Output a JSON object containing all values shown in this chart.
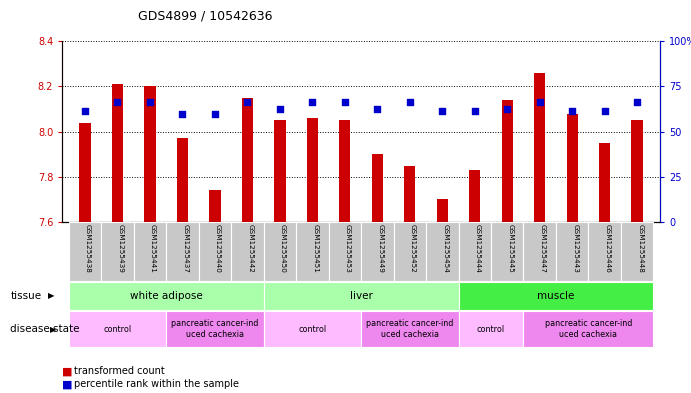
{
  "title": "GDS4899 / 10542636",
  "samples": [
    "GSM1255438",
    "GSM1255439",
    "GSM1255441",
    "GSM1255437",
    "GSM1255440",
    "GSM1255442",
    "GSM1255450",
    "GSM1255451",
    "GSM1255453",
    "GSM1255449",
    "GSM1255452",
    "GSM1255454",
    "GSM1255444",
    "GSM1255445",
    "GSM1255447",
    "GSM1255443",
    "GSM1255446",
    "GSM1255448"
  ],
  "transformed_count": [
    8.04,
    8.21,
    8.2,
    7.97,
    7.74,
    8.15,
    8.05,
    8.06,
    8.05,
    7.9,
    7.85,
    7.7,
    7.83,
    8.14,
    8.26,
    8.08,
    7.95,
    8.05
  ],
  "percentile_rank": [
    8.09,
    8.13,
    8.13,
    8.08,
    8.08,
    8.13,
    8.1,
    8.13,
    8.13,
    8.1,
    8.13,
    8.09,
    8.09,
    8.1,
    8.13,
    8.09,
    8.09,
    8.13
  ],
  "ylim_left": [
    7.6,
    8.4
  ],
  "ylim_right": [
    0,
    100
  ],
  "yticks_left": [
    7.6,
    7.8,
    8.0,
    8.2,
    8.4
  ],
  "yticks_right": [
    0,
    25,
    50,
    75,
    100
  ],
  "bar_color": "#cc0000",
  "dot_color": "#0000cc",
  "tissue_groups": [
    {
      "label": "white adipose",
      "start": 0,
      "end": 5,
      "color": "#aaffaa"
    },
    {
      "label": "liver",
      "start": 6,
      "end": 11,
      "color": "#aaffaa"
    },
    {
      "label": "muscle",
      "start": 12,
      "end": 17,
      "color": "#44ee44"
    }
  ],
  "disease_groups": [
    {
      "label": "control",
      "start": 0,
      "end": 2,
      "color": "#ffbbff"
    },
    {
      "label": "pancreatic cancer-ind\nuced cachexia",
      "start": 3,
      "end": 5,
      "color": "#ee88ee"
    },
    {
      "label": "control",
      "start": 6,
      "end": 8,
      "color": "#ffbbff"
    },
    {
      "label": "pancreatic cancer-ind\nuced cachexia",
      "start": 9,
      "end": 11,
      "color": "#ee88ee"
    },
    {
      "label": "control",
      "start": 12,
      "end": 13,
      "color": "#ffbbff"
    },
    {
      "label": "pancreatic cancer-ind\nuced cachexia",
      "start": 14,
      "end": 17,
      "color": "#ee88ee"
    }
  ]
}
